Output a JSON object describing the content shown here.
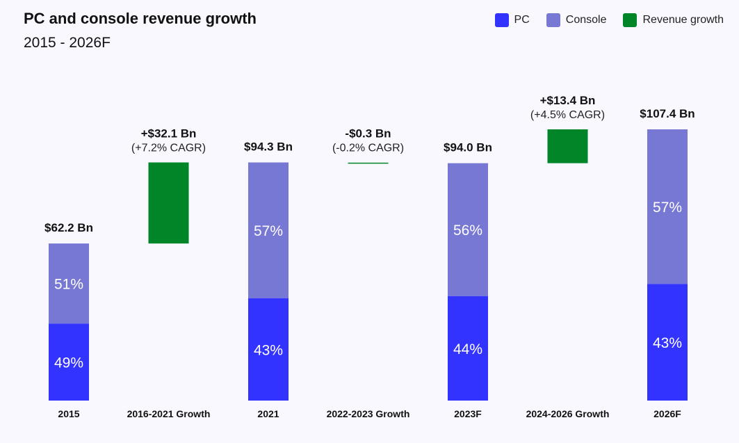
{
  "chart_data": {
    "type": "bar",
    "title": "PC and console revenue growth",
    "subtitle": "2015 - 2026F",
    "units": "$ Bn",
    "legend": [
      {
        "name": "PC",
        "color": "#3333ff"
      },
      {
        "name": "Console",
        "color": "#7777d4"
      },
      {
        "name": "Revenue growth",
        "color": "#008529"
      }
    ],
    "categories": [
      "2015",
      "2016-2021 Growth",
      "2021",
      "2022-2023 Growth",
      "2023F",
      "2024-2026 Growth",
      "2026F"
    ],
    "bars": [
      {
        "kind": "total",
        "total": 62.2,
        "label": "$62.2 Bn",
        "pc_share": 49,
        "console_share": 51,
        "pc_label": "49%",
        "console_label": "51%"
      },
      {
        "kind": "growth",
        "from": 62.2,
        "to": 94.3,
        "label": "+$32.1 Bn",
        "sublabel": "(+7.2% CAGR)"
      },
      {
        "kind": "total",
        "total": 94.3,
        "label": "$94.3 Bn",
        "pc_share": 43,
        "console_share": 57,
        "pc_label": "43%",
        "console_label": "57%"
      },
      {
        "kind": "growth",
        "from": 94.3,
        "to": 94.0,
        "label": "-$0.3 Bn",
        "sublabel": "(-0.2% CAGR)"
      },
      {
        "kind": "total",
        "total": 94.0,
        "label": "$94.0 Bn",
        "pc_share": 44,
        "console_share": 56,
        "pc_label": "44%",
        "console_label": "56%"
      },
      {
        "kind": "growth",
        "from": 94.0,
        "to": 107.4,
        "label": "+$13.4 Bn",
        "sublabel": "(+4.5% CAGR)"
      },
      {
        "kind": "total",
        "total": 107.4,
        "label": "$107.4 Bn",
        "pc_share": 43,
        "console_share": 57,
        "pc_label": "43%",
        "console_label": "57%"
      }
    ],
    "ylim": [
      0,
      107.4
    ],
    "grid": false,
    "legend_position": "top-right"
  }
}
